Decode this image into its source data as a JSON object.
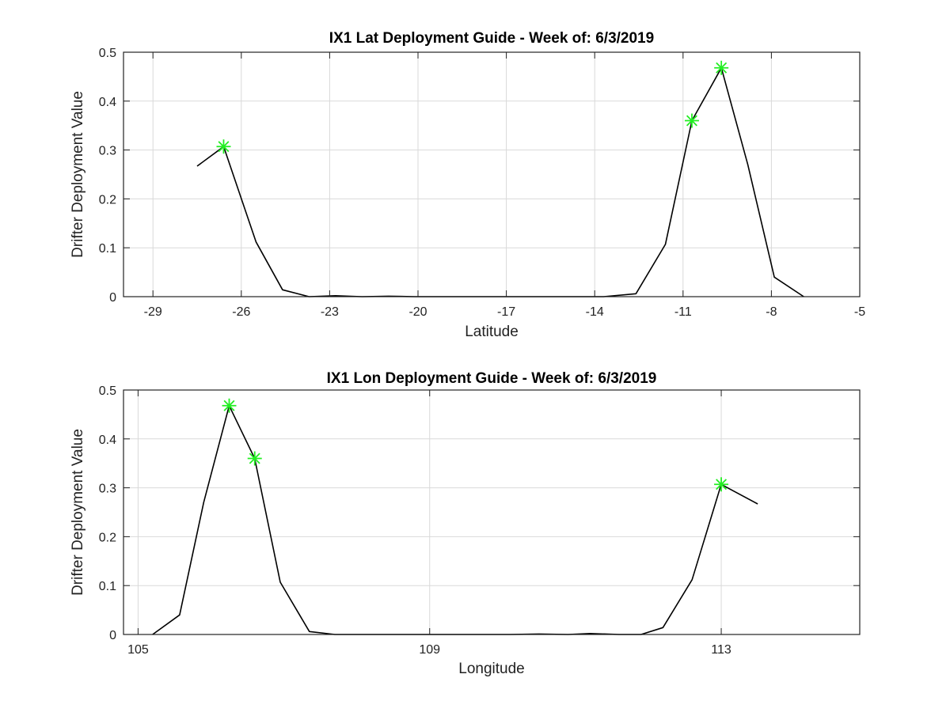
{
  "chart_data": [
    {
      "type": "line",
      "title": "IX1 Lat Deployment Guide - Week of: 6/3/2019",
      "xlabel": "Latitude",
      "ylabel": "Drifter Deployment Value",
      "xlim": [
        -30,
        -5
      ],
      "ylim": [
        0,
        0.5
      ],
      "xticks": [
        -29,
        -26,
        -23,
        -20,
        -17,
        -14,
        -11,
        -8,
        -5
      ],
      "xtick_labels": [
        "-29",
        "-26",
        "-23",
        "-20",
        "-17",
        "-14",
        "-11",
        "-8",
        "-5"
      ],
      "yticks": [
        0,
        0.1,
        0.2,
        0.3,
        0.4,
        0.5
      ],
      "ytick_labels": [
        "0",
        "0.1",
        "0.2",
        "0.3",
        "0.4",
        "0.5"
      ],
      "grid": true,
      "line_color": "#000000",
      "marker_color": "#22ee22",
      "series": [
        {
          "x": [
            -27.5,
            -26.6,
            -25.5,
            -24.6,
            -23.7,
            -22.8,
            -21.9,
            -21.0,
            -20.1,
            -19.2,
            -18.3,
            -17.4,
            -16.5,
            -15.5,
            -14.6,
            -13.7,
            -12.6,
            -11.6,
            -10.7,
            -9.7,
            -8.8,
            -7.9,
            -6.9
          ],
          "y": [
            0.267,
            0.307,
            0.112,
            0.014,
            0.0,
            0.002,
            0.0,
            0.001,
            0.0,
            0.0,
            0.0,
            0.0,
            0.0,
            0.0,
            0.0,
            0.0,
            0.006,
            0.107,
            0.36,
            0.468,
            0.27,
            0.04,
            0.0
          ]
        }
      ],
      "markers": {
        "x": [
          -26.6,
          -10.7,
          -9.7
        ],
        "y": [
          0.307,
          0.36,
          0.468
        ]
      }
    },
    {
      "type": "line",
      "title": "IX1 Lon Deployment Guide - Week of: 6/3/2019",
      "xlabel": "Longitude",
      "ylabel": "Drifter Deployment Value",
      "xlim": [
        104.8,
        114.9
      ],
      "ylim": [
        0,
        0.5
      ],
      "xticks": [
        105,
        109,
        113
      ],
      "xtick_labels": [
        "105",
        "109",
        "113"
      ],
      "yticks": [
        0,
        0.1,
        0.2,
        0.3,
        0.4,
        0.5
      ],
      "ytick_labels": [
        "0",
        "0.1",
        "0.2",
        "0.3",
        "0.4",
        "0.5"
      ],
      "grid": true,
      "line_color": "#000000",
      "marker_color": "#22ee22",
      "series": [
        {
          "x": [
            105.2,
            105.57,
            105.9,
            106.25,
            106.6,
            106.95,
            107.35,
            107.7,
            108.1,
            108.5,
            108.9,
            109.3,
            109.7,
            110.1,
            110.5,
            110.9,
            111.2,
            111.6,
            111.9,
            112.2,
            112.6,
            113.0,
            113.5
          ],
          "y": [
            0.0,
            0.04,
            0.27,
            0.468,
            0.36,
            0.107,
            0.006,
            0.0,
            0.0,
            0.0,
            0.0,
            0.0,
            0.0,
            0.0,
            0.001,
            0.0,
            0.002,
            0.0,
            0.0,
            0.014,
            0.112,
            0.307,
            0.267
          ]
        }
      ],
      "markers": {
        "x": [
          106.25,
          106.6,
          113.0
        ],
        "y": [
          0.468,
          0.36,
          0.307
        ]
      }
    }
  ]
}
